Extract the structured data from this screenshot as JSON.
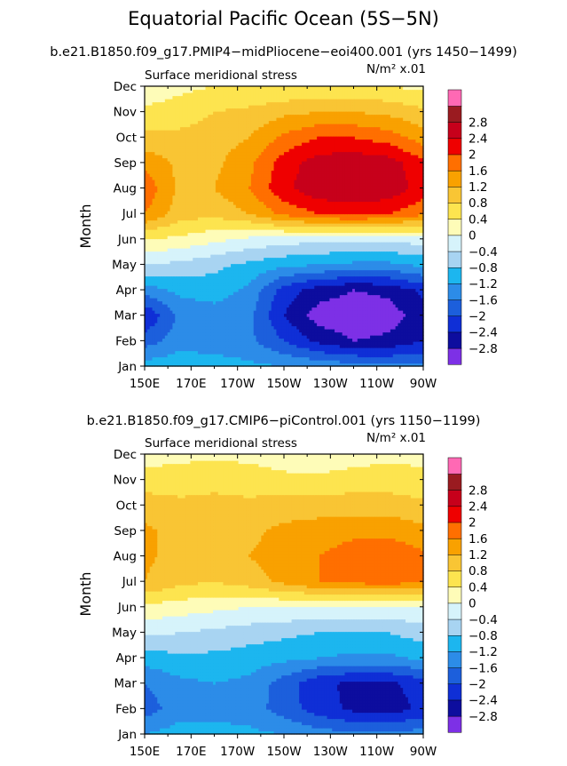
{
  "page": {
    "title": "Equatorial Pacific Ocean (5S−5N)"
  },
  "colors": {
    "levels": [
      "#7d30e6",
      "#0d0d9e",
      "#0f2fd6",
      "#1c5fdc",
      "#2c8ce8",
      "#1cb6ef",
      "#a8d4f2",
      "#d6f3fb",
      "#fefcb8",
      "#fde44f",
      "#f9c534",
      "#f9a100",
      "#ff6f00",
      "#ef0000",
      "#c7001b",
      "#9a1b20",
      "#ff69b4"
    ]
  },
  "colorbar": {
    "labels": [
      "−2.8",
      "−2.4",
      "−2",
      "−1.6",
      "−1.2",
      "−0.8",
      "−0.4",
      "0",
      "0.4",
      "0.8",
      "1.2",
      "1.6",
      "2",
      "2.4",
      "2.8"
    ]
  },
  "axes": {
    "month_labels": [
      "Jan",
      "Feb",
      "Mar",
      "Apr",
      "May",
      "Jun",
      "Jul",
      "Aug",
      "Sep",
      "Oct",
      "Nov",
      "Dec"
    ],
    "lon_labels": [
      "150E",
      "170E",
      "170W",
      "150W",
      "130W",
      "110W",
      "90W"
    ],
    "ylabel": "Month"
  },
  "chart_data": [
    {
      "type": "heatmap",
      "subtitle": "b.e21.B1850.f09_g17.PMIP4−midPliocene−eoi400.001 (yrs 1450−1499)",
      "left_label": "Surface meridional stress",
      "right_label": "N/m² x.01",
      "xlabel": "",
      "ylabel": "Month",
      "x": [
        150,
        165,
        180,
        195,
        210,
        225,
        240,
        255,
        270
      ],
      "x_tick_labels": [
        "150E",
        "170E",
        "170W",
        "150W",
        "130W",
        "110W",
        "90W"
      ],
      "y": [
        "Jan",
        "Feb",
        "Mar",
        "Apr",
        "May",
        "Jun",
        "Jul",
        "Aug",
        "Sep",
        "Oct",
        "Nov",
        "Dec"
      ],
      "levels": [
        -2.8,
        -2.4,
        -2.0,
        -1.6,
        -1.2,
        -0.8,
        -0.4,
        0,
        0.4,
        0.8,
        1.2,
        1.6,
        2.0,
        2.4,
        2.8
      ],
      "z": [
        [
          -1.0,
          -0.9,
          -1.0,
          -1.1,
          -1.2,
          -1.3,
          -1.4,
          -1.5,
          -1.5
        ],
        [
          -1.8,
          -1.4,
          -1.4,
          -1.5,
          -2.0,
          -2.5,
          -2.8,
          -2.7,
          -2.4
        ],
        [
          -2.4,
          -1.5,
          -1.4,
          -1.5,
          -2.4,
          -3.0,
          -3.1,
          -3.0,
          -2.6
        ],
        [
          -1.4,
          -1.1,
          -1.0,
          -1.3,
          -2.2,
          -2.6,
          -2.8,
          -2.7,
          -2.3
        ],
        [
          -0.4,
          -0.5,
          -0.7,
          -0.9,
          -1.1,
          -1.2,
          -1.3,
          -1.3,
          -1.1
        ],
        [
          0.4,
          0.3,
          0.1,
          -0.1,
          -0.2,
          -0.3,
          -0.3,
          -0.3,
          -0.2
        ],
        [
          1.6,
          1.0,
          0.9,
          1.2,
          1.7,
          2.0,
          2.1,
          2.0,
          1.7
        ],
        [
          1.9,
          1.1,
          1.2,
          1.6,
          2.3,
          2.7,
          2.8,
          2.7,
          2.2
        ],
        [
          1.5,
          1.1,
          1.1,
          1.5,
          2.2,
          2.6,
          2.7,
          2.6,
          2.1
        ],
        [
          0.9,
          0.9,
          1.0,
          1.2,
          1.7,
          2.0,
          2.0,
          1.8,
          1.4
        ],
        [
          0.5,
          0.6,
          0.8,
          0.9,
          1.1,
          1.2,
          1.2,
          1.1,
          0.9
        ],
        [
          0.1,
          0.3,
          0.4,
          0.4,
          0.4,
          0.5,
          0.5,
          0.4,
          0.3
        ]
      ]
    },
    {
      "type": "heatmap",
      "subtitle": "b.e21.B1850.f09_g17.CMIP6−piControl.001 (yrs 1150−1199)",
      "left_label": "Surface meridional stress",
      "right_label": "N/m² x.01",
      "xlabel": "",
      "ylabel": "Month",
      "x": [
        150,
        165,
        180,
        195,
        210,
        225,
        240,
        255,
        270
      ],
      "x_tick_labels": [
        "150E",
        "170E",
        "170W",
        "150W",
        "130W",
        "110W",
        "90W"
      ],
      "y": [
        "Jan",
        "Feb",
        "Mar",
        "Apr",
        "May",
        "Jun",
        "Jul",
        "Aug",
        "Sep",
        "Oct",
        "Nov",
        "Dec"
      ],
      "levels": [
        -2.8,
        -2.4,
        -2.0,
        -1.6,
        -1.2,
        -0.8,
        -0.4,
        0,
        0.4,
        0.8,
        1.2,
        1.6,
        2.0,
        2.4,
        2.8
      ],
      "z": [
        [
          -1.2,
          -1.0,
          -1.0,
          -1.1,
          -1.2,
          -1.4,
          -1.5,
          -1.5,
          -1.4
        ],
        [
          -1.8,
          -1.4,
          -1.4,
          -1.4,
          -1.8,
          -2.2,
          -2.5,
          -2.6,
          -2.3
        ],
        [
          -1.6,
          -1.3,
          -1.2,
          -1.3,
          -1.8,
          -2.3,
          -2.5,
          -2.5,
          -2.2
        ],
        [
          -1.0,
          -0.9,
          -0.9,
          -1.0,
          -1.1,
          -1.2,
          -1.3,
          -1.3,
          -1.1
        ],
        [
          -0.3,
          -0.4,
          -0.5,
          -0.6,
          -0.7,
          -0.8,
          -0.8,
          -0.8,
          -0.6
        ],
        [
          0.3,
          0.2,
          0.1,
          0.0,
          0.0,
          -0.1,
          -0.1,
          -0.1,
          0.0
        ],
        [
          1.2,
          0.9,
          0.8,
          1.0,
          1.3,
          1.6,
          1.7,
          1.8,
          1.6
        ],
        [
          1.3,
          1.0,
          1.0,
          1.2,
          1.4,
          1.6,
          1.8,
          1.9,
          1.7
        ],
        [
          1.3,
          1.0,
          1.0,
          1.1,
          1.3,
          1.4,
          1.5,
          1.5,
          1.3
        ],
        [
          1.0,
          0.9,
          0.9,
          0.9,
          1.0,
          1.0,
          1.0,
          1.0,
          0.9
        ],
        [
          0.6,
          0.6,
          0.7,
          0.6,
          0.5,
          0.5,
          0.6,
          0.6,
          0.5
        ],
        [
          0.2,
          0.3,
          0.3,
          0.3,
          0.2,
          0.1,
          0.2,
          0.3,
          0.3
        ]
      ]
    }
  ]
}
